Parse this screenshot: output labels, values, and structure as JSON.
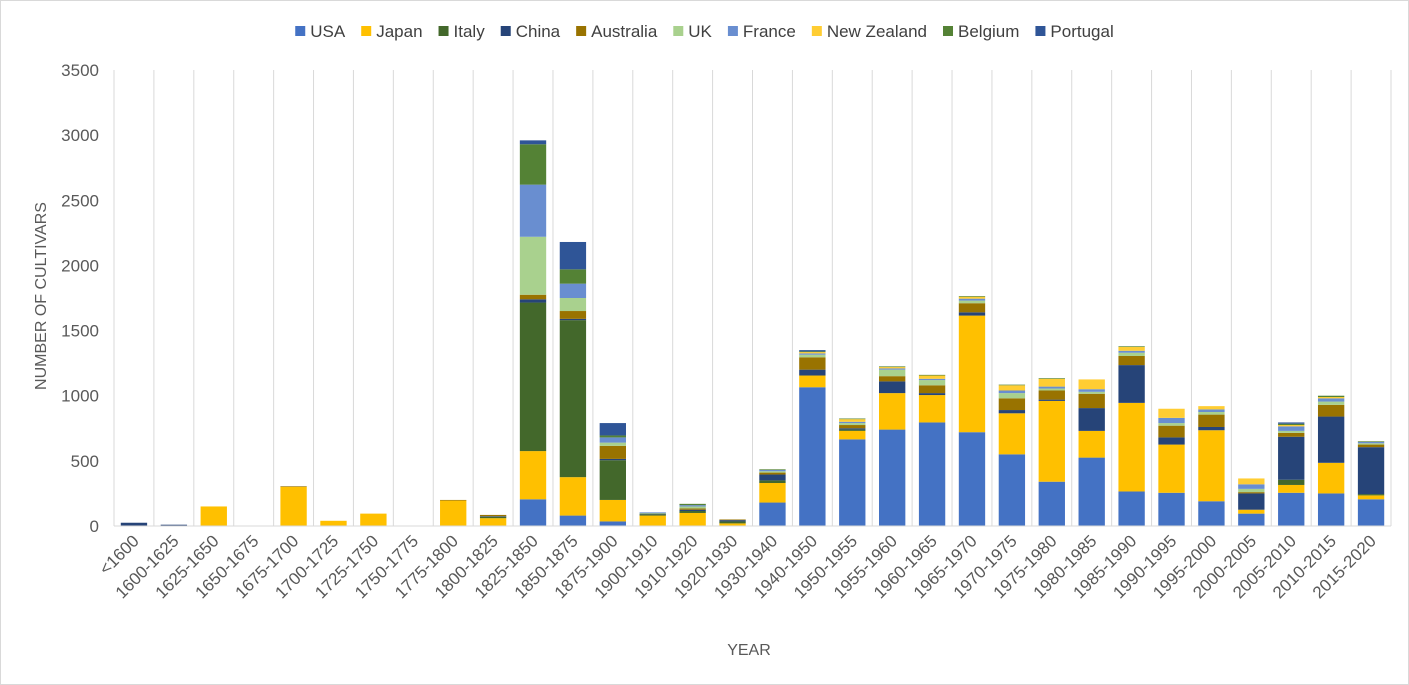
{
  "chart_data": {
    "type": "bar",
    "stacked": true,
    "title": "",
    "xlabel": "YEAR",
    "ylabel": "NUMBER OF CULTIVARS",
    "ylim": [
      0,
      3500
    ],
    "yticks": [
      0,
      500,
      1000,
      1500,
      2000,
      2500,
      3000,
      3500
    ],
    "grid": "vertical category lines",
    "legend_position": "top",
    "categories": [
      "<1600",
      "1600-1625",
      "1625-1650",
      "1650-1675",
      "1675-1700",
      "1700-1725",
      "1725-1750",
      "1750-1775",
      "1775-1800",
      "1800-1825",
      "1825-1850",
      "1850-1875",
      "1875-1900",
      "1900-1910",
      "1910-1920",
      "1920-1930",
      "1930-1940",
      "1940-1950",
      "1950-1955",
      "1955-1960",
      "1960-1965",
      "1965-1970",
      "1970-1975",
      "1975-1980",
      "1980-1985",
      "1985-1990",
      "1990-1995",
      "1995-2000",
      "2000-2005",
      "2005-2010",
      "2010-2015",
      "2015-2020"
    ],
    "series": [
      {
        "name": "USA",
        "color": "#4472c4",
        "values": [
          0,
          0,
          0,
          0,
          0,
          0,
          0,
          0,
          0,
          0,
          205,
          80,
          35,
          0,
          0,
          0,
          180,
          1065,
          665,
          740,
          795,
          720,
          550,
          340,
          525,
          265,
          255,
          190,
          95,
          255,
          250,
          205
        ]
      },
      {
        "name": "Japan",
        "color": "#ffc000",
        "values": [
          0,
          0,
          150,
          0,
          300,
          40,
          95,
          0,
          195,
          60,
          370,
          295,
          165,
          80,
          100,
          20,
          150,
          90,
          65,
          280,
          210,
          895,
          315,
          620,
          205,
          680,
          370,
          545,
          30,
          60,
          235,
          30
        ]
      },
      {
        "name": "Italy",
        "color": "#43682b",
        "values": [
          0,
          0,
          0,
          0,
          0,
          0,
          0,
          0,
          0,
          10,
          1140,
          1205,
          305,
          10,
          15,
          15,
          20,
          0,
          10,
          0,
          0,
          0,
          0,
          0,
          0,
          0,
          0,
          0,
          0,
          40,
          0,
          10
        ]
      },
      {
        "name": "China",
        "color": "#264478",
        "values": [
          25,
          10,
          0,
          0,
          0,
          0,
          0,
          0,
          0,
          5,
          25,
          10,
          10,
          5,
          10,
          10,
          45,
          45,
          10,
          90,
          15,
          25,
          25,
          10,
          175,
          290,
          55,
          25,
          125,
          330,
          355,
          360
        ]
      },
      {
        "name": "Australia",
        "color": "#997300",
        "values": [
          0,
          0,
          0,
          0,
          5,
          0,
          0,
          0,
          5,
          10,
          35,
          60,
          100,
          0,
          10,
          5,
          15,
          95,
          25,
          40,
          60,
          70,
          90,
          70,
          110,
          70,
          90,
          95,
          10,
          30,
          90,
          20
        ]
      },
      {
        "name": "UK",
        "color": "#a9d18e",
        "values": [
          0,
          0,
          0,
          0,
          0,
          0,
          0,
          0,
          0,
          0,
          445,
          100,
          25,
          5,
          15,
          0,
          10,
          20,
          15,
          50,
          40,
          20,
          40,
          15,
          15,
          25,
          20,
          20,
          25,
          15,
          25,
          10
        ]
      },
      {
        "name": "France",
        "color": "#698ed0",
        "values": [
          0,
          0,
          0,
          0,
          0,
          0,
          0,
          0,
          0,
          0,
          400,
          110,
          40,
          5,
          10,
          0,
          10,
          10,
          10,
          10,
          10,
          15,
          20,
          15,
          20,
          15,
          40,
          20,
          35,
          35,
          25,
          10
        ]
      },
      {
        "name": "New Zealand",
        "color": "#ffcd33",
        "values": [
          0,
          0,
          0,
          0,
          0,
          0,
          0,
          0,
          0,
          0,
          0,
          0,
          0,
          0,
          0,
          0,
          0,
          10,
          20,
          10,
          25,
          15,
          40,
          60,
          75,
          30,
          70,
          25,
          45,
          10,
          10,
          0
        ]
      },
      {
        "name": "Belgium",
        "color": "#548235",
        "values": [
          0,
          0,
          0,
          0,
          0,
          0,
          0,
          0,
          0,
          0,
          310,
          110,
          15,
          0,
          10,
          0,
          5,
          5,
          5,
          5,
          5,
          5,
          5,
          5,
          0,
          5,
          0,
          0,
          0,
          10,
          10,
          5
        ]
      },
      {
        "name": "Portugal",
        "color": "#2f5597",
        "values": [
          0,
          0,
          0,
          0,
          0,
          0,
          0,
          0,
          0,
          0,
          30,
          210,
          95,
          0,
          0,
          0,
          0,
          10,
          0,
          0,
          0,
          0,
          0,
          0,
          0,
          0,
          0,
          0,
          0,
          10,
          0,
          0
        ]
      }
    ]
  }
}
